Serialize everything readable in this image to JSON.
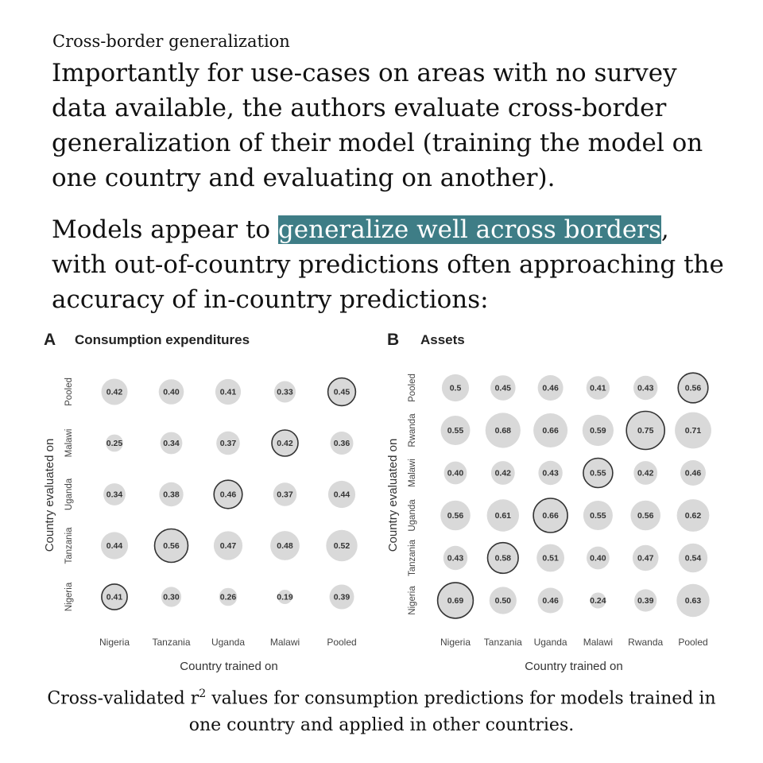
{
  "section_title": "Cross-border generalization",
  "paragraph1": "Importantly for use-cases on areas with no survey data available, the authors evaluate cross-border generalization of their model (training the model on one country and evaluating on another).",
  "paragraph2": {
    "before": "Models appear to ",
    "highlight": "generalize well across borders",
    "after": ", with out-of-country predictions often approaching the accuracy of in-country predictions:"
  },
  "caption": {
    "before": "Cross-validated r",
    "sup": "2",
    "after": " values for consumption predictions for models trained in one country and applied in other countries."
  },
  "colors": {
    "highlight": "#3e7d86",
    "bubble": "#d9d9d9",
    "ring": "#333333"
  },
  "chart_data": [
    {
      "type": "bubble-matrix",
      "panel": "A",
      "title": "Consumption expenditures",
      "xlabel": "Country trained on",
      "ylabel": "Country evaluated on",
      "x_categories": [
        "Nigeria",
        "Tanzania",
        "Uganda",
        "Malawi",
        "Pooled"
      ],
      "y_categories": [
        "Pooled",
        "Malawi",
        "Uganda",
        "Tanzania",
        "Nigeria"
      ],
      "values": [
        [
          0.42,
          0.4,
          0.41,
          0.33,
          0.45
        ],
        [
          0.25,
          0.34,
          0.37,
          0.42,
          0.36
        ],
        [
          0.34,
          0.38,
          0.46,
          0.37,
          0.44
        ],
        [
          0.44,
          0.56,
          0.47,
          0.48,
          0.52
        ],
        [
          0.41,
          0.3,
          0.26,
          0.19,
          0.39
        ]
      ],
      "labels": [
        [
          "0.42",
          "0.40",
          "0.41",
          "0.33",
          "0.45"
        ],
        [
          "0.25",
          "0.34",
          "0.37",
          "0.42",
          "0.36"
        ],
        [
          "0.34",
          "0.38",
          "0.46",
          "0.37",
          "0.44"
        ],
        [
          "0.44",
          "0.56",
          "0.47",
          "0.48",
          "0.52"
        ],
        [
          "0.41",
          "0.30",
          "0.26",
          "0.19",
          "0.39"
        ]
      ],
      "outlined": [
        [
          0,
          4
        ],
        [
          1,
          3
        ],
        [
          2,
          2
        ],
        [
          3,
          1
        ],
        [
          4,
          0
        ]
      ]
    },
    {
      "type": "bubble-matrix",
      "panel": "B",
      "title": "Assets",
      "xlabel": "Country trained on",
      "ylabel": "Country evaluated on",
      "x_categories": [
        "Nigeria",
        "Tanzania",
        "Uganda",
        "Malawi",
        "Rwanda",
        "Pooled"
      ],
      "y_categories": [
        "Pooled",
        "Rwanda",
        "Malawi",
        "Uganda",
        "Tanzania",
        "Nigeria"
      ],
      "values": [
        [
          0.5,
          0.45,
          0.46,
          0.41,
          0.43,
          0.56
        ],
        [
          0.55,
          0.68,
          0.66,
          0.59,
          0.75,
          0.71
        ],
        [
          0.4,
          0.42,
          0.43,
          0.55,
          0.42,
          0.46
        ],
        [
          0.56,
          0.61,
          0.66,
          0.55,
          0.56,
          0.62
        ],
        [
          0.43,
          0.58,
          0.51,
          0.4,
          0.47,
          0.54
        ],
        [
          0.69,
          0.5,
          0.46,
          0.24,
          0.39,
          0.63
        ]
      ],
      "labels": [
        [
          "0.5",
          "0.45",
          "0.46",
          "0.41",
          "0.43",
          "0.56"
        ],
        [
          "0.55",
          "0.68",
          "0.66",
          "0.59",
          "0.75",
          "0.71"
        ],
        [
          "0.40",
          "0.42",
          "0.43",
          "0.55",
          "0.42",
          "0.46"
        ],
        [
          "0.56",
          "0.61",
          "0.66",
          "0.55",
          "0.56",
          "0.62"
        ],
        [
          "0.43",
          "0.58",
          "0.51",
          "0.40",
          "0.47",
          "0.54"
        ],
        [
          "0.69",
          "0.50",
          "0.46",
          "0.24",
          "0.39",
          "0.63"
        ]
      ],
      "outlined": [
        [
          0,
          5
        ],
        [
          1,
          4
        ],
        [
          2,
          3
        ],
        [
          3,
          2
        ],
        [
          4,
          1
        ],
        [
          5,
          0
        ]
      ]
    }
  ]
}
